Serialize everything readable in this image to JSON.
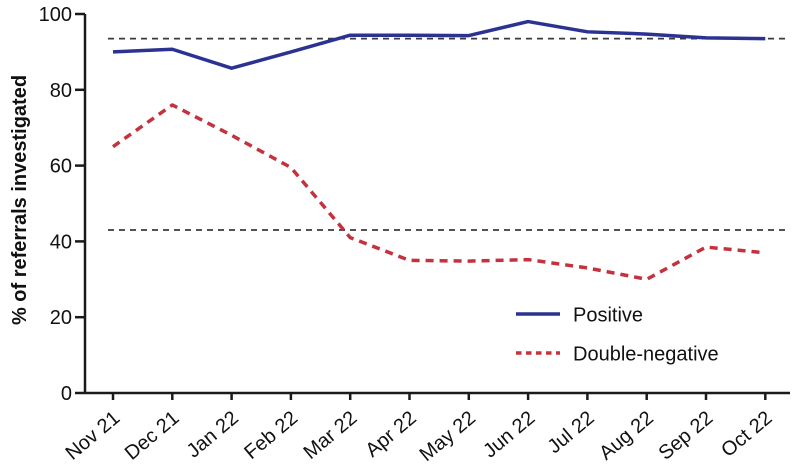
{
  "figure": {
    "background": "#ffffff",
    "text_color": "#111111",
    "axis_color": "#1a1a1a"
  },
  "chart_data": {
    "type": "line",
    "title": "",
    "xlabel": "",
    "ylabel": "% of referrals investigated",
    "ylim": [
      0,
      100
    ],
    "yticks": [
      0,
      20,
      40,
      60,
      80,
      100
    ],
    "grid": false,
    "legend_position": "lower-right-inside",
    "categories": [
      "Nov 21",
      "Dec 21",
      "Jan 22",
      "Feb 22",
      "Mar 22",
      "Apr 22",
      "May 22",
      "Jun 22",
      "Jul 22",
      "Aug 22",
      "Sep 22",
      "Oct 22"
    ],
    "series": [
      {
        "name": "Positive",
        "style": "solid",
        "color": "#2c3292",
        "values": [
          90,
          90.7,
          85.7,
          90,
          94.4,
          94.4,
          94.3,
          98,
          95.3,
          94.7,
          93.7,
          93.5
        ]
      },
      {
        "name": "Double-negative",
        "style": "dashed",
        "color": "#c4323e",
        "values": [
          65,
          76,
          68,
          59.5,
          41,
          35,
          34.8,
          35.2,
          33,
          30,
          38.5,
          37
        ]
      }
    ],
    "reference_lines": [
      {
        "y": 93.5,
        "style": "dashed",
        "color": "#3a3a3a"
      },
      {
        "y": 43,
        "style": "dashed",
        "color": "#3a3a3a"
      }
    ]
  }
}
